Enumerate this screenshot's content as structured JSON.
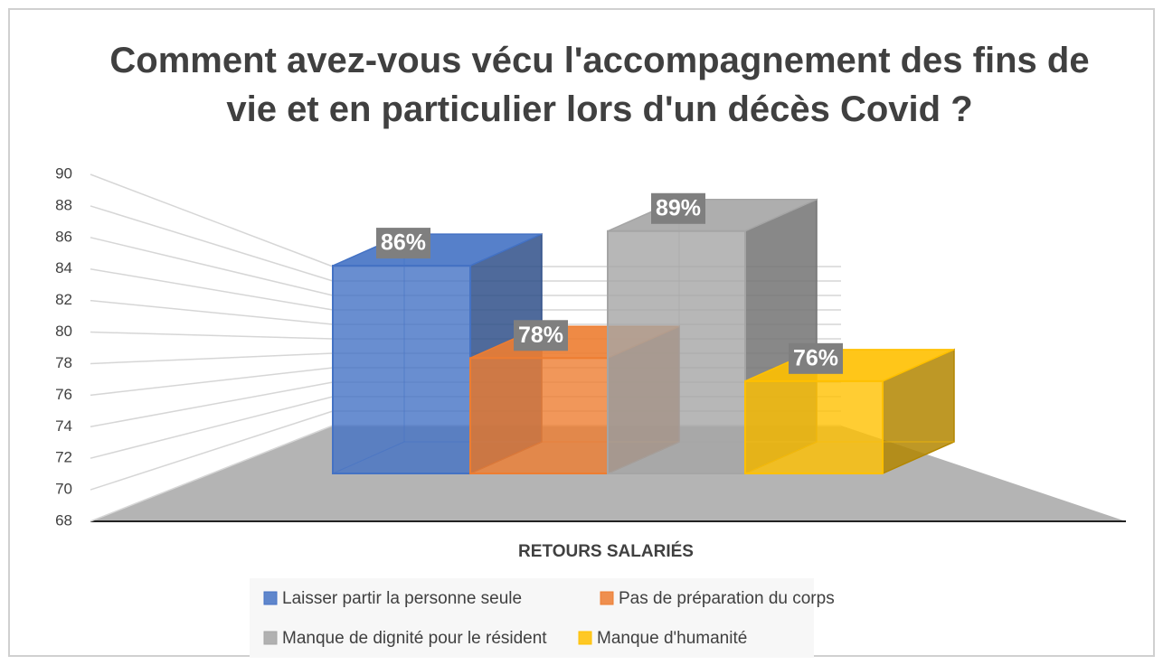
{
  "chart_data": {
    "type": "bar3d",
    "title": "Comment avez-vous vécu l'accompagnement des fins de vie et en particulier lors d'un décès Covid ?",
    "x_label": "RETOURS SALARIÉS",
    "ylim": [
      68,
      90
    ],
    "yticks": [
      68,
      70,
      72,
      74,
      76,
      78,
      80,
      82,
      84,
      86,
      88,
      90
    ],
    "grid": true,
    "legend": "bottom",
    "series": [
      {
        "name": "Laisser partir la personne seule",
        "color": "#4472c4",
        "values": [
          86
        ],
        "value_labels": [
          "86%"
        ]
      },
      {
        "name": "Pas de préparation du corps",
        "color": "#ed7d31",
        "values": [
          78
        ],
        "value_labels": [
          "78%"
        ]
      },
      {
        "name": "Manque de dignité pour le résident",
        "color": "#a5a5a5",
        "values": [
          89
        ],
        "value_labels": [
          "89%"
        ]
      },
      {
        "name": "Manque d'humanité",
        "color": "#ffc000",
        "values": [
          76
        ],
        "value_labels": [
          "76%"
        ]
      }
    ]
  }
}
